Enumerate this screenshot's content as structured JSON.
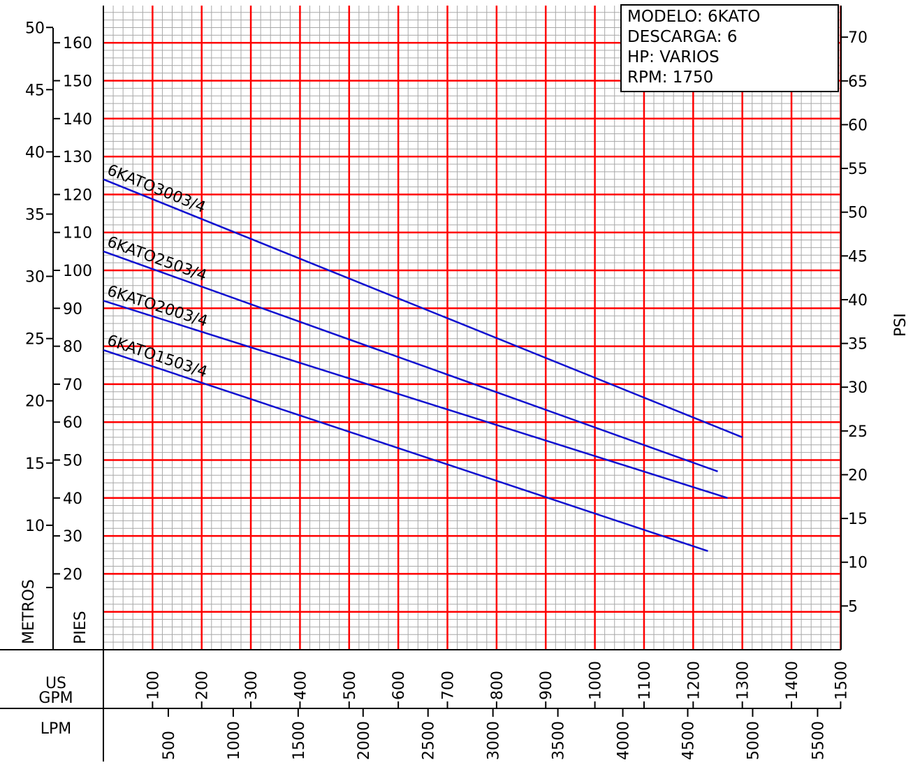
{
  "chart_data": {
    "type": "line",
    "info": {
      "modelo": "MODELO:  6KATO",
      "descarga": "DESCARGA:  6",
      "hp": "HP:  VARIOS",
      "rpm": "RPM:  1750"
    },
    "xlabel_gpm": "US GPM",
    "xlabel_gpm_line1": "US",
    "xlabel_gpm_line2": "GPM",
    "xlabel_lpm": "LPM",
    "ylabel_metros": "METROS",
    "ylabel_pies": "PIES",
    "ylabel_psi": "PSI",
    "x_gpm_ticks": [
      "100",
      "200",
      "300",
      "400",
      "500",
      "600",
      "700",
      "800",
      "900",
      "1000",
      "1100",
      "1200",
      "1300",
      "1400",
      "1500"
    ],
    "x_lpm_ticks": [
      "500",
      "1000",
      "1500",
      "2000",
      "2500",
      "3000",
      "3500",
      "4000",
      "4500",
      "5000",
      "5500"
    ],
    "y_pies_ticks": [
      "20",
      "30",
      "40",
      "50",
      "60",
      "70",
      "80",
      "90",
      "100",
      "110",
      "120",
      "130",
      "140",
      "150",
      "160"
    ],
    "y_metros_ticks": [
      "10",
      "15",
      "20",
      "25",
      "30",
      "35",
      "40",
      "45",
      "50"
    ],
    "y_psi_ticks": [
      "5",
      "10",
      "15",
      "20",
      "25",
      "30",
      "35",
      "40",
      "45",
      "50",
      "55",
      "60",
      "65",
      "70"
    ],
    "xlim_gpm": [
      0,
      1500
    ],
    "ylim_pies": [
      0,
      170
    ],
    "series": [
      {
        "name": "6KATO3003/4",
        "x": [
          0,
          1300
        ],
        "y": [
          124,
          56
        ]
      },
      {
        "name": "6KATO2503/4",
        "x": [
          0,
          1250
        ],
        "y": [
          105,
          47
        ]
      },
      {
        "name": "6KATO2003/4",
        "x": [
          0,
          1270
        ],
        "y": [
          92,
          40
        ]
      },
      {
        "name": "6KATO1503/4",
        "x": [
          0,
          1230
        ],
        "y": [
          79,
          26
        ]
      }
    ],
    "grid": true,
    "colors": {
      "series": "#1010d0",
      "major_grid": "#ff0000",
      "minor_grid": "#a8a8a8",
      "axes": "#000000"
    }
  }
}
